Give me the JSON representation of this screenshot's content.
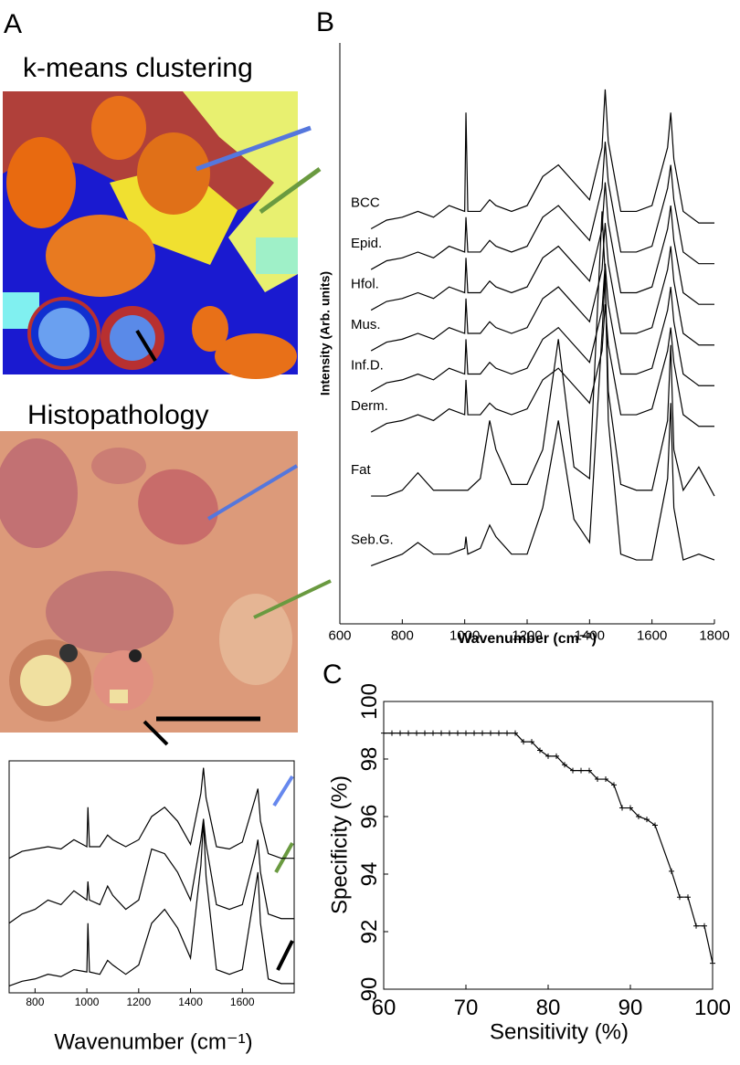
{
  "panels": {
    "labels": [
      "A",
      "B",
      "C"
    ],
    "image_titles": [
      "k-means clustering",
      "Histopathology"
    ]
  },
  "chart_data": [
    {
      "type": "line",
      "ylabel": "Intensity (Arb. units)",
      "xlabel": "Wavenumber (cm⁻¹)",
      "x": [
        700,
        750,
        800,
        850,
        900,
        950,
        1000,
        1004,
        1010,
        1050,
        1080,
        1100,
        1150,
        1200,
        1250,
        1300,
        1350,
        1400,
        1440,
        1450,
        1460,
        1500,
        1550,
        1600,
        1650,
        1660,
        1670,
        1700,
        1750,
        1800
      ],
      "xlim": [
        600,
        1800
      ],
      "xticks": [
        600,
        800,
        1000,
        1200,
        1400,
        1600,
        1800
      ],
      "ylim": [
        0,
        100
      ],
      "series_labels": true,
      "series": [
        {
          "name": "BCC",
          "color": "#000000",
          "values": [
            68,
            69.5,
            70,
            71,
            70,
            72,
            71,
            88,
            71,
            71,
            73,
            72,
            71,
            72,
            77,
            79,
            76,
            73,
            82,
            92,
            83,
            71,
            71,
            72,
            82,
            88,
            80,
            71,
            69,
            69
          ]
        },
        {
          "name": "Epid.",
          "color": "#000000",
          "values": [
            61,
            62.5,
            63,
            64,
            63,
            65,
            64,
            70,
            64,
            64,
            66,
            65,
            64,
            65,
            70,
            72,
            69,
            66,
            75,
            83,
            76,
            64,
            64,
            65,
            75,
            79,
            73,
            64,
            62,
            62
          ]
        },
        {
          "name": "Hfol.",
          "color": "#000000",
          "values": [
            54,
            55.5,
            56,
            57,
            56,
            58,
            57,
            63,
            57,
            57,
            59,
            58,
            57,
            58,
            63,
            65,
            62,
            59,
            68,
            76,
            69,
            57,
            57,
            58,
            68,
            72,
            66,
            57,
            55,
            55
          ]
        },
        {
          "name": "Mus.",
          "color": "#000000",
          "values": [
            47,
            48.5,
            49,
            50,
            49,
            51,
            50,
            56,
            50,
            50,
            52,
            51,
            50,
            51,
            56,
            58,
            55,
            52,
            61,
            69,
            62,
            50,
            50,
            51,
            61,
            65,
            59,
            50,
            48,
            48
          ]
        },
        {
          "name": "Inf.D.",
          "color": "#000000",
          "values": [
            40,
            41.5,
            42,
            43,
            42,
            44,
            43,
            49,
            43,
            43,
            45,
            44,
            43,
            44,
            49,
            51,
            48,
            45,
            54,
            62,
            55,
            43,
            43,
            44,
            54,
            58,
            52,
            43,
            41,
            41
          ]
        },
        {
          "name": "Derm.",
          "color": "#000000",
          "values": [
            33,
            34.5,
            35,
            36,
            35,
            37,
            36,
            42,
            36,
            36,
            38,
            37,
            36,
            37,
            42,
            44,
            41,
            38,
            47,
            55,
            48,
            36,
            36,
            37,
            47,
            51,
            45,
            36,
            34,
            34
          ]
        },
        {
          "name": "Fat",
          "color": "#000000",
          "values": [
            22,
            22,
            23,
            26,
            23,
            23,
            23,
            23,
            23,
            25,
            35,
            30,
            24,
            24,
            30,
            49,
            27,
            25,
            71,
            60,
            40,
            24,
            23,
            23,
            35,
            48,
            30,
            23,
            27,
            22
          ]
        },
        {
          "name": "Seb.G.",
          "color": "#000000",
          "values": [
            10,
            11,
            12,
            14,
            12,
            12,
            13,
            15,
            12,
            13,
            17,
            15,
            12,
            12,
            20,
            35,
            18,
            14,
            50,
            60,
            35,
            12,
            11,
            11,
            25,
            38,
            20,
            11,
            12,
            11
          ]
        }
      ]
    },
    {
      "type": "line",
      "xlabel": "Sensitivity (%)",
      "ylabel": "Specificity (%)",
      "marker": "+",
      "frame": true,
      "x": [
        60,
        61,
        62,
        63,
        64,
        65,
        66,
        67,
        68,
        69,
        70,
        71,
        72,
        73,
        74,
        75,
        76,
        77,
        78,
        79,
        80,
        81,
        82,
        83,
        84,
        85,
        86,
        87,
        88,
        89,
        90,
        91,
        92,
        93,
        95,
        96,
        97,
        98,
        99,
        100
      ],
      "xlim": [
        60,
        100
      ],
      "xticks": [
        60,
        70,
        80,
        90,
        100
      ],
      "ylim": [
        90,
        100
      ],
      "yticks": [
        90,
        92,
        94,
        96,
        98,
        100
      ],
      "series": [
        {
          "color": "#000000",
          "values": [
            98.9,
            98.9,
            98.9,
            98.9,
            98.9,
            98.9,
            98.9,
            98.9,
            98.9,
            98.9,
            98.9,
            98.9,
            98.9,
            98.9,
            98.9,
            98.9,
            98.9,
            98.6,
            98.6,
            98.3,
            98.1,
            98.1,
            97.8,
            97.6,
            97.6,
            97.6,
            97.3,
            97.3,
            97.1,
            96.3,
            96.3,
            96.0,
            95.9,
            95.7,
            94.1,
            93.2,
            93.2,
            92.2,
            92.2,
            90.9
          ]
        }
      ]
    },
    {
      "type": "line",
      "xlabel": "Wavenumber (cm⁻¹)",
      "frame": true,
      "x": [
        700,
        750,
        800,
        850,
        900,
        950,
        1000,
        1004,
        1010,
        1050,
        1080,
        1100,
        1150,
        1200,
        1250,
        1300,
        1350,
        1400,
        1440,
        1450,
        1460,
        1500,
        1550,
        1600,
        1650,
        1660,
        1670,
        1700,
        1750,
        1800
      ],
      "xlim": [
        700,
        1800
      ],
      "xticks": [
        800,
        1000,
        1200,
        1400,
        1600
      ],
      "ylim": [
        0,
        100
      ],
      "series": [
        {
          "color": "#000000",
          "values": [
            58,
            61,
            62,
            63,
            62,
            66,
            63,
            80,
            63,
            63,
            68,
            66,
            63,
            66,
            76,
            80,
            74,
            64,
            86,
            97,
            84,
            63,
            62,
            65,
            84,
            88,
            74,
            60,
            58,
            58
          ]
        },
        {
          "color": "#000000",
          "values": [
            30,
            34,
            36,
            40,
            38,
            44,
            40,
            48,
            40,
            38,
            46,
            42,
            36,
            40,
            62,
            60,
            52,
            40,
            66,
            75,
            64,
            38,
            36,
            38,
            60,
            66,
            52,
            34,
            32,
            32
          ]
        },
        {
          "color": "#000000",
          "values": [
            3,
            5,
            6,
            8,
            7,
            10,
            9,
            30,
            9,
            8,
            14,
            12,
            8,
            12,
            30,
            36,
            28,
            15,
            55,
            74,
            50,
            10,
            8,
            10,
            45,
            52,
            30,
            6,
            4,
            4
          ]
        }
      ]
    }
  ]
}
